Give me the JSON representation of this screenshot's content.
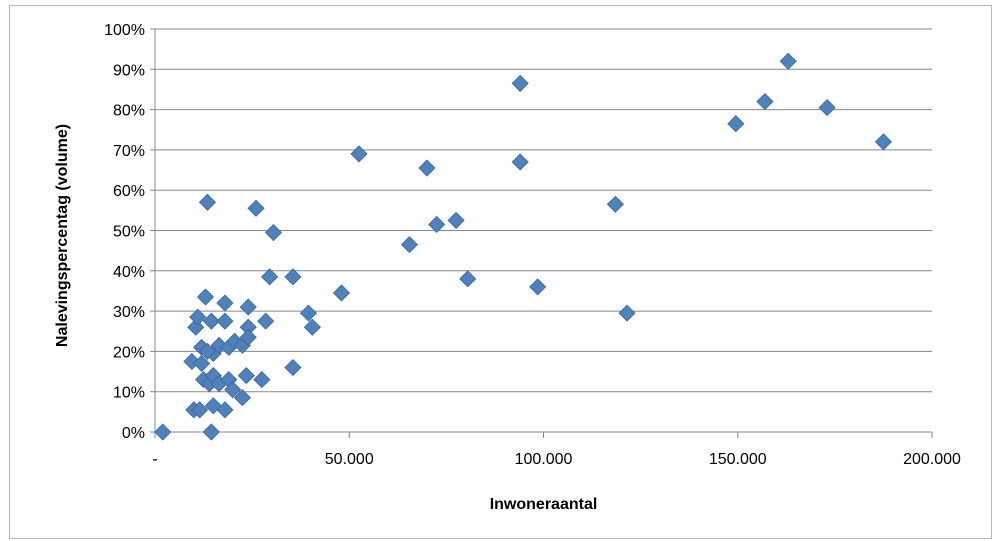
{
  "chart_data": {
    "type": "scatter",
    "title": "",
    "xlabel": "Inwoneraantal",
    "ylabel": "Nalevingspercentag (volume)",
    "xlim": [
      0,
      200000
    ],
    "ylim": [
      0,
      100
    ],
    "x_ticks": [
      0,
      50000,
      100000,
      150000,
      200000
    ],
    "x_tick_labels": [
      "-",
      "50.000",
      "100.000",
      "150.000",
      "200.000"
    ],
    "y_ticks": [
      0,
      10,
      20,
      30,
      40,
      50,
      60,
      70,
      80,
      90,
      100
    ],
    "y_tick_labels": [
      "0%",
      "10%",
      "20%",
      "30%",
      "40%",
      "50%",
      "60%",
      "70%",
      "80%",
      "90%",
      "100%"
    ],
    "grid": "horizontal",
    "legend": "none",
    "marker_color": "#4F81BD",
    "marker_edge_color": "#3A6796",
    "series": [
      {
        "points": [
          [
            2000,
            0
          ],
          [
            13500,
            57
          ],
          [
            26000,
            55.5
          ],
          [
            30500,
            49.5
          ],
          [
            52500,
            69
          ],
          [
            70000,
            65.5
          ],
          [
            94000,
            86.5
          ],
          [
            94000,
            67
          ],
          [
            72500,
            51.5
          ],
          [
            77500,
            52.5
          ],
          [
            65500,
            46.5
          ],
          [
            118500,
            56.5
          ],
          [
            149500,
            76.5
          ],
          [
            157000,
            82
          ],
          [
            163000,
            92
          ],
          [
            173000,
            80.5
          ],
          [
            187500,
            72
          ],
          [
            80500,
            38
          ],
          [
            98500,
            36
          ],
          [
            121500,
            29.5
          ],
          [
            48000,
            34.5
          ],
          [
            35500,
            38.5
          ],
          [
            29500,
            38.5
          ],
          [
            39500,
            29.5
          ],
          [
            40500,
            26
          ],
          [
            24000,
            31
          ],
          [
            28500,
            27.5
          ],
          [
            24000,
            26
          ],
          [
            18000,
            32
          ],
          [
            13000,
            33.5
          ],
          [
            10500,
            26
          ],
          [
            11000,
            28.5
          ],
          [
            14500,
            27.5
          ],
          [
            18000,
            27.5
          ],
          [
            12000,
            21
          ],
          [
            15000,
            19.5
          ],
          [
            16500,
            21.5
          ],
          [
            19000,
            21
          ],
          [
            20500,
            22.5
          ],
          [
            22500,
            21.5
          ],
          [
            24000,
            23.5
          ],
          [
            9500,
            17.5
          ],
          [
            12000,
            17
          ],
          [
            13500,
            20
          ],
          [
            35500,
            16
          ],
          [
            12500,
            13
          ],
          [
            14000,
            12
          ],
          [
            15000,
            14
          ],
          [
            16500,
            12
          ],
          [
            19000,
            13
          ],
          [
            20000,
            10.5
          ],
          [
            23500,
            14
          ],
          [
            27500,
            13
          ],
          [
            10000,
            5.5
          ],
          [
            11500,
            5.5
          ],
          [
            15000,
            6.5
          ],
          [
            18000,
            5.5
          ],
          [
            22500,
            8.5
          ],
          [
            14500,
            0
          ]
        ]
      }
    ]
  }
}
